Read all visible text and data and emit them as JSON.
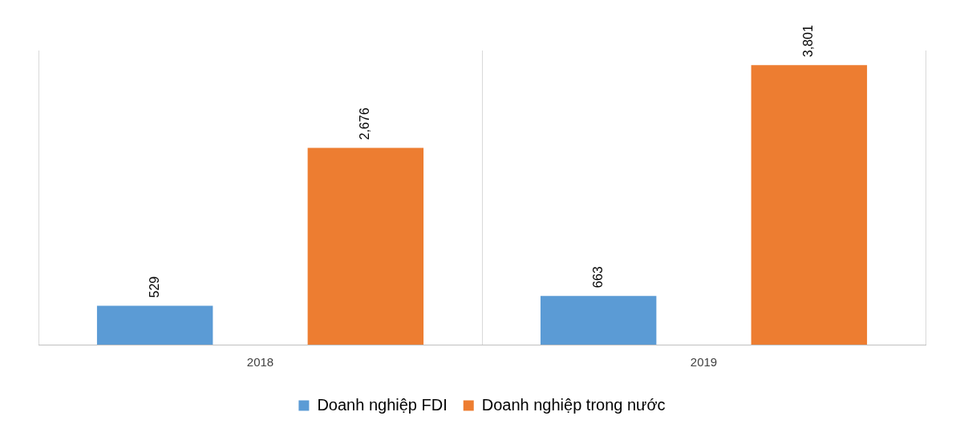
{
  "chart_data": {
    "type": "bar",
    "categories": [
      "2018",
      "2019"
    ],
    "series": [
      {
        "name": "Doanh nghiệp FDI",
        "color": "#5b9bd5",
        "values": [
          529,
          663
        ],
        "value_labels": [
          "529",
          "663"
        ]
      },
      {
        "name": "Doanh nghiệp trong nước",
        "color": "#ed7d31",
        "values": [
          2676,
          3801
        ],
        "value_labels": [
          "2,676",
          "3,801"
        ]
      }
    ],
    "grid": "x",
    "legend": "bottom"
  }
}
